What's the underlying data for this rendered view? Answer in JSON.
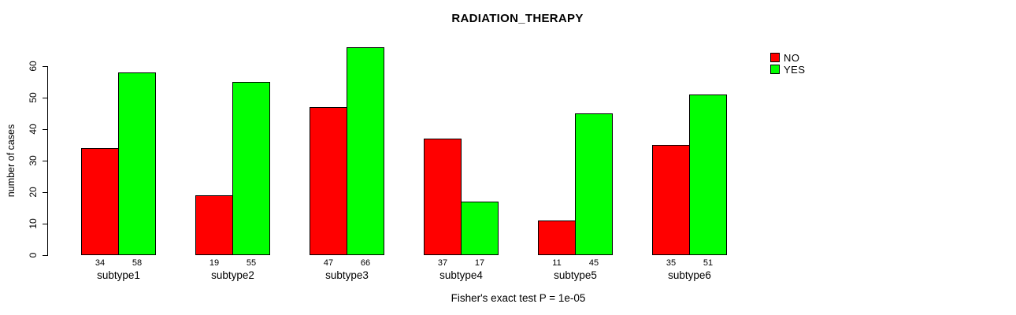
{
  "figure": {
    "title": "RADIATION_THERAPY",
    "y_axis_label": "number of cases",
    "footnote": "Fisher's exact test P = 1e-05"
  },
  "legend": {
    "items": [
      {
        "label": "NO",
        "color": "#FF0000"
      },
      {
        "label": "YES",
        "color": "#00FF00"
      }
    ]
  },
  "colors": {
    "bar_border": "#000000",
    "axis": "#000000",
    "background": "#FFFFFF",
    "text": "#000000"
  },
  "chart_data": {
    "type": "bar",
    "title": "RADIATION_THERAPY",
    "xlabel": "",
    "ylabel": "number of cases",
    "categories": [
      "subtype1",
      "subtype2",
      "subtype3",
      "subtype4",
      "subtype5",
      "subtype6"
    ],
    "series": [
      {
        "name": "NO",
        "color": "#FF0000",
        "values": [
          34,
          19,
          47,
          37,
          11,
          35
        ]
      },
      {
        "name": "YES",
        "color": "#00FF00",
        "values": [
          58,
          55,
          66,
          17,
          45,
          51
        ]
      }
    ],
    "bar_value_labels": [
      [
        "34",
        "58"
      ],
      [
        "19",
        "55"
      ],
      [
        "47",
        "66"
      ],
      [
        "37",
        "17"
      ],
      [
        "11",
        "45"
      ],
      [
        "35",
        "51"
      ]
    ],
    "yticks": [
      0,
      10,
      20,
      30,
      40,
      50,
      60
    ],
    "ylim": [
      0,
      66
    ],
    "grid": false,
    "legend_position": "top-right",
    "annotation": "Fisher's exact test P = 1e-05"
  }
}
